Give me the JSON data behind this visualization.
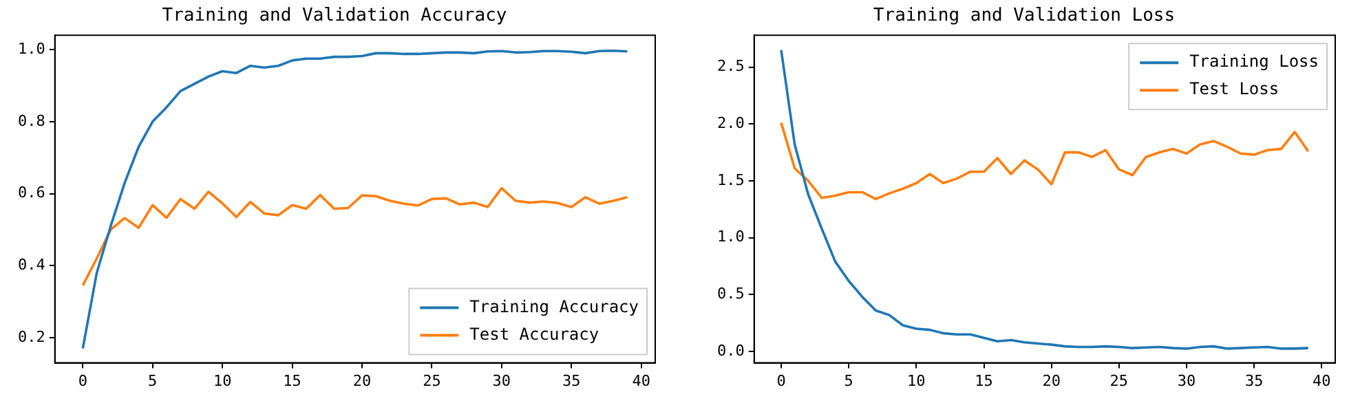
{
  "chart_data": [
    {
      "type": "line",
      "title": "Training and Validation Accuracy",
      "x": [
        0,
        1,
        2,
        3,
        4,
        5,
        6,
        7,
        8,
        9,
        10,
        11,
        12,
        13,
        14,
        15,
        16,
        17,
        18,
        19,
        20,
        21,
        22,
        23,
        24,
        25,
        26,
        27,
        28,
        29,
        30,
        31,
        32,
        33,
        34,
        35,
        36,
        37,
        38,
        39
      ],
      "series": [
        {
          "name": "Training Accuracy",
          "color": "#1f77b4",
          "values": [
            0.17,
            0.38,
            0.51,
            0.63,
            0.73,
            0.8,
            0.84,
            0.885,
            0.905,
            0.925,
            0.94,
            0.935,
            0.955,
            0.95,
            0.955,
            0.97,
            0.975,
            0.975,
            0.98,
            0.98,
            0.982,
            0.99,
            0.99,
            0.988,
            0.988,
            0.99,
            0.992,
            0.992,
            0.99,
            0.995,
            0.996,
            0.992,
            0.993,
            0.996,
            0.996,
            0.994,
            0.99,
            0.996,
            0.997,
            0.995
          ]
        },
        {
          "name": "Test Accuracy",
          "color": "#ff7f0e",
          "values": [
            0.345,
            0.42,
            0.5,
            0.532,
            0.505,
            0.568,
            0.533,
            0.585,
            0.558,
            0.605,
            0.573,
            0.535,
            0.577,
            0.545,
            0.54,
            0.568,
            0.558,
            0.596,
            0.558,
            0.56,
            0.595,
            0.593,
            0.58,
            0.572,
            0.567,
            0.585,
            0.587,
            0.57,
            0.575,
            0.563,
            0.615,
            0.58,
            0.575,
            0.578,
            0.574,
            0.563,
            0.59,
            0.572,
            0.58,
            0.59
          ]
        }
      ],
      "xlim": [
        -2,
        41
      ],
      "xticks": [
        0,
        5,
        10,
        15,
        20,
        25,
        30,
        35,
        40
      ],
      "ylim": [
        0.13,
        1.04
      ],
      "yticks": [
        {
          "value": 0.2,
          "label": "0.2"
        },
        {
          "value": 0.4,
          "label": "0.4"
        },
        {
          "value": 0.6,
          "label": "0.6"
        },
        {
          "value": 0.8,
          "label": "0.8"
        },
        {
          "value": 1.0,
          "label": "1.0"
        }
      ],
      "grid": false,
      "legend": "bottom right",
      "marker": "none",
      "line_style": "solid"
    },
    {
      "type": "line",
      "title": "Training and Validation Loss",
      "x": [
        0,
        1,
        2,
        3,
        4,
        5,
        6,
        7,
        8,
        9,
        10,
        11,
        12,
        13,
        14,
        15,
        16,
        17,
        18,
        19,
        20,
        21,
        22,
        23,
        24,
        25,
        26,
        27,
        28,
        29,
        30,
        31,
        32,
        33,
        34,
        35,
        36,
        37,
        38,
        39
      ],
      "series": [
        {
          "name": "Training Loss",
          "color": "#1f77b4",
          "values": [
            2.65,
            1.82,
            1.38,
            1.08,
            0.79,
            0.62,
            0.48,
            0.36,
            0.32,
            0.23,
            0.2,
            0.19,
            0.16,
            0.15,
            0.15,
            0.12,
            0.09,
            0.1,
            0.08,
            0.07,
            0.06,
            0.045,
            0.04,
            0.04,
            0.045,
            0.04,
            0.03,
            0.035,
            0.04,
            0.03,
            0.025,
            0.04,
            0.045,
            0.025,
            0.03,
            0.035,
            0.04,
            0.025,
            0.025,
            0.03
          ]
        },
        {
          "name": "Test Loss",
          "color": "#ff7f0e",
          "values": [
            2.01,
            1.61,
            1.5,
            1.35,
            1.37,
            1.4,
            1.4,
            1.34,
            1.39,
            1.43,
            1.48,
            1.56,
            1.48,
            1.52,
            1.58,
            1.58,
            1.7,
            1.56,
            1.68,
            1.6,
            1.47,
            1.75,
            1.75,
            1.71,
            1.77,
            1.6,
            1.55,
            1.71,
            1.75,
            1.78,
            1.74,
            1.82,
            1.85,
            1.8,
            1.74,
            1.73,
            1.77,
            1.78,
            1.93,
            1.76
          ]
        }
      ],
      "xlim": [
        -2,
        41
      ],
      "xticks": [
        0,
        5,
        10,
        15,
        20,
        25,
        30,
        35,
        40
      ],
      "ylim": [
        -0.1,
        2.78
      ],
      "yticks": [
        {
          "value": 0,
          "label": "0.0"
        },
        {
          "value": 0.5,
          "label": "0.5"
        },
        {
          "value": 1,
          "label": "1.0"
        },
        {
          "value": 1.5,
          "label": "1.5"
        },
        {
          "value": 2,
          "label": "2.0"
        },
        {
          "value": 2.5,
          "label": "2.5"
        }
      ],
      "grid": false,
      "legend": "top right",
      "marker": "none",
      "line_style": "solid"
    }
  ]
}
